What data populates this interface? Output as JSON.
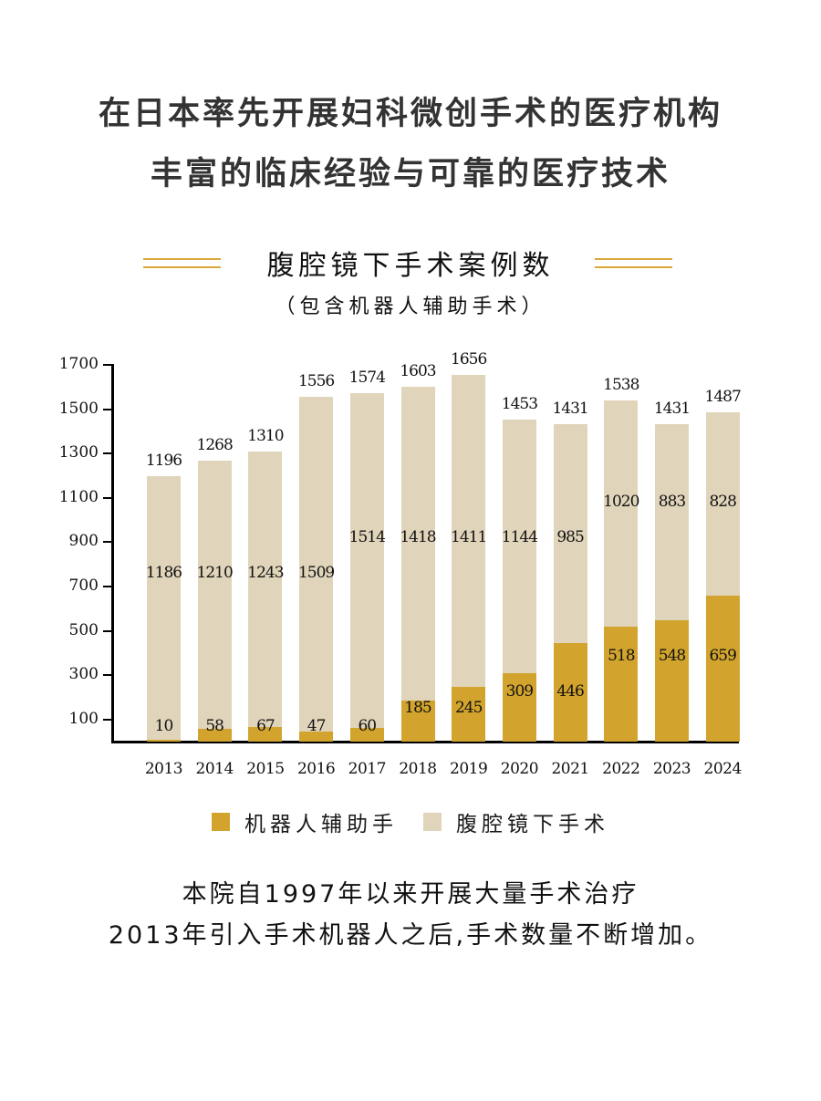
{
  "headline": {
    "line1": "在日本率先开展妇科微创手术的医疗机构",
    "line2": "丰富的临床经验与可靠的医疗技术"
  },
  "colors": {
    "robot": "#D2A42E",
    "laparoscopic": "#E0D4BA",
    "decoration": "#D9A93A"
  },
  "chart_data": {
    "type": "bar",
    "stacked": true,
    "title": "腹腔镜下手术案例数",
    "subtitle": "（包含机器人辅助手术）",
    "xlabel": "",
    "ylabel": "",
    "ylim": [
      0,
      1700
    ],
    "yticks": [
      100,
      300,
      500,
      700,
      900,
      1100,
      1300,
      1500,
      1700
    ],
    "grid": false,
    "legend_position": "bottom",
    "categories": [
      "2013",
      "2014",
      "2015",
      "2016",
      "2017",
      "2018",
      "2019",
      "2020",
      "2021",
      "2022",
      "2023",
      "2024"
    ],
    "series": [
      {
        "name": "机器人辅助手",
        "color": "#D2A42E",
        "values": [
          10,
          58,
          67,
          47,
          60,
          185,
          245,
          309,
          446,
          518,
          548,
          659
        ]
      },
      {
        "name": "腹腔镜下手术",
        "color": "#E0D4BA",
        "values": [
          1186,
          1210,
          1243,
          1509,
          1514,
          1418,
          1411,
          1144,
          985,
          1020,
          883,
          828
        ]
      }
    ],
    "totals": [
      1196,
      1268,
      1310,
      1556,
      1574,
      1603,
      1656,
      1453,
      1431,
      1538,
      1431,
      1487
    ]
  },
  "legend": {
    "robot_label": "机器人辅助手",
    "lap_label": "腹腔镜下手术"
  },
  "footer": {
    "line1": "本院自1997年以来开展大量手术治疗",
    "line2": "2013年引入手术机器人之后,手术数量不断增加。"
  }
}
